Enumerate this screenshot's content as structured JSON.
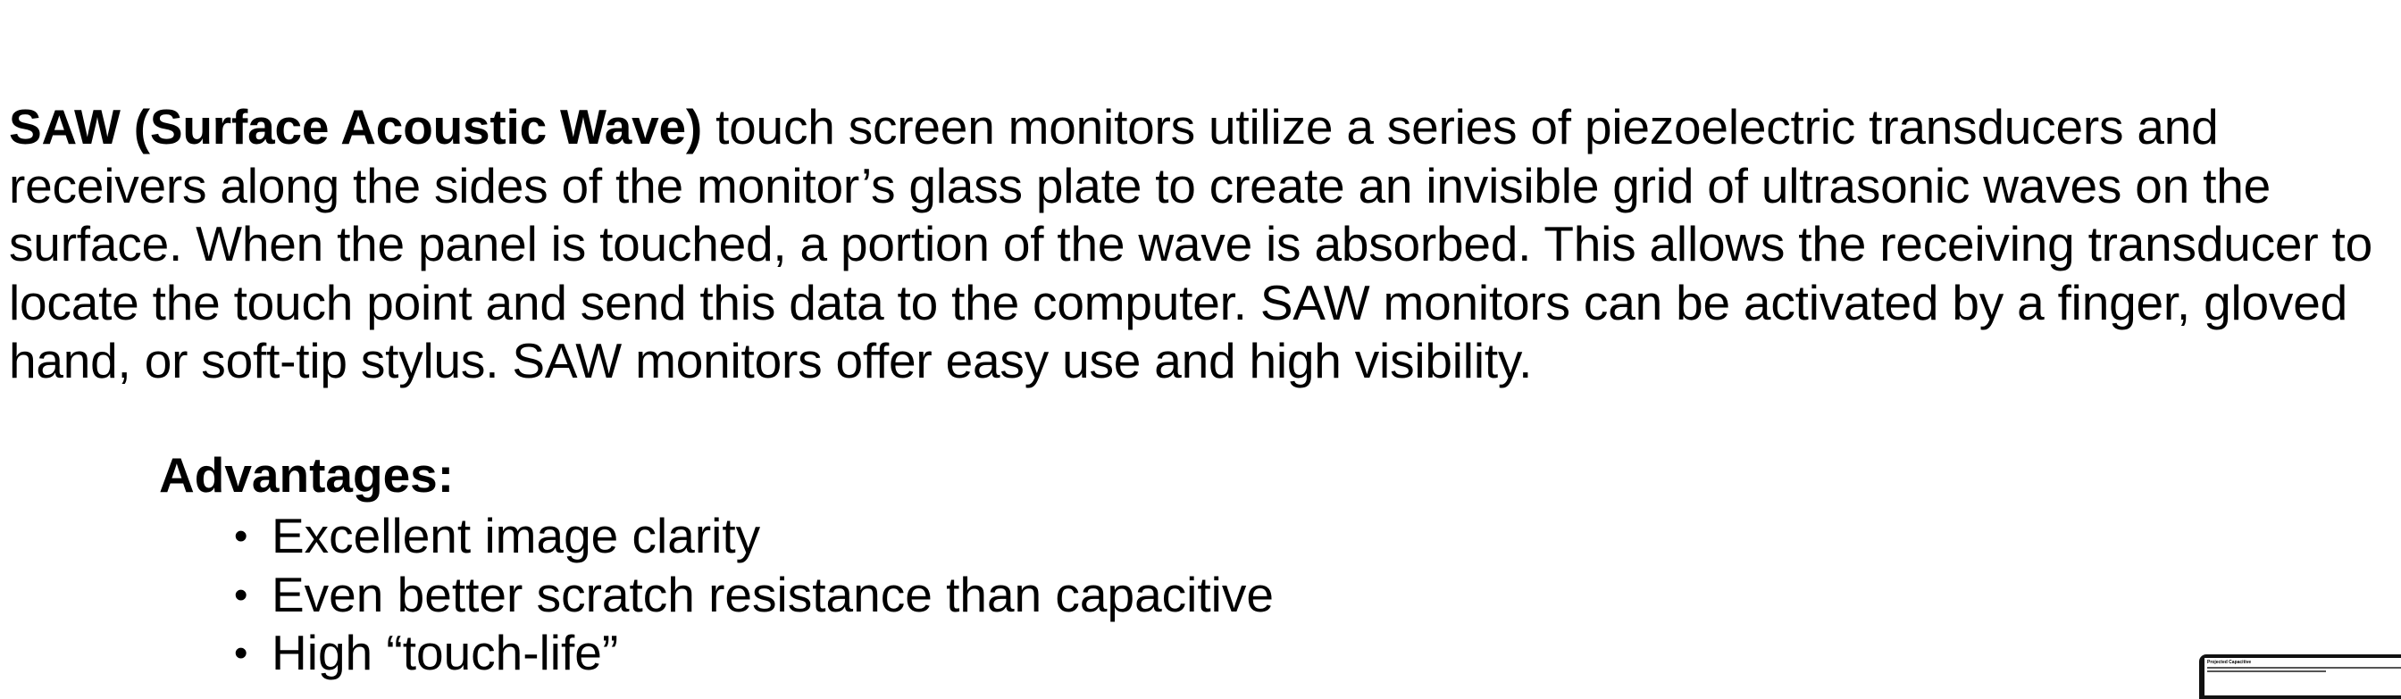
{
  "intro": {
    "bold_term": "SAW (Surface Acoustic Wave)",
    "body": " touch screen monitors utilize a series of piezoelectric transducers and receivers along the sides of the monitor’s glass plate to create an invisible grid of ultrasonic waves on the surface. When the panel is touched, a portion of the wave is absorbed. This allows the receiving transducer to locate the touch point and send this data to the computer. SAW monitors can be activated by a finger, gloved hand, or soft-tip stylus. SAW monitors offer easy use and high visibility."
  },
  "advantages": {
    "heading": "Advantages:",
    "bullet": "•",
    "items": [
      "Excellent image clarity",
      "Even better scratch resistance than capacitive",
      "High “touch-life”"
    ]
  },
  "thumbnail": {
    "bold_term": "Projected Capacitive"
  }
}
